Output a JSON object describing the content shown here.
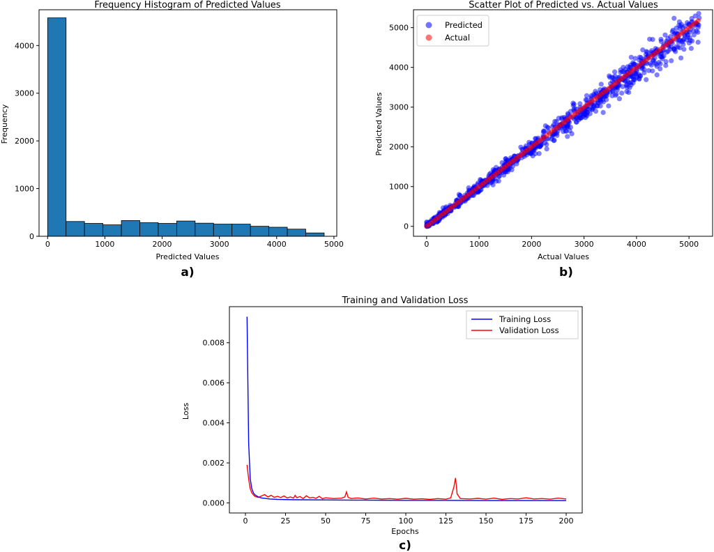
{
  "chart_data": [
    {
      "type": "bar",
      "panel_label": "a)",
      "title": "Frequency Histogram of Predicted Values",
      "xlabel": "Predicted Values",
      "ylabel": "Frequency",
      "xlim": [
        -150,
        5050
      ],
      "ylim": [
        0,
        4750
      ],
      "xticks": [
        0,
        1000,
        2000,
        3000,
        4000,
        5000
      ],
      "yticks": [
        0,
        1000,
        2000,
        3000,
        4000
      ],
      "bin_edges": [
        0,
        322,
        644,
        966,
        1288,
        1610,
        1932,
        2254,
        2576,
        2898,
        3220,
        3542,
        3864,
        4186,
        4508,
        4830
      ],
      "values": [
        4580,
        310,
        270,
        240,
        330,
        285,
        270,
        320,
        275,
        255,
        255,
        210,
        190,
        150,
        70
      ],
      "bar_color": "#1f77b4",
      "grid": false
    },
    {
      "type": "scatter",
      "panel_label": "b)",
      "title": "Scatter Plot of Predicted vs. Actual Values",
      "xlabel": "Actual Values",
      "ylabel": "Predicted Values",
      "xlim": [
        -250,
        5450
      ],
      "ylim": [
        -250,
        5450
      ],
      "xticks": [
        0,
        1000,
        2000,
        3000,
        4000,
        5000
      ],
      "yticks": [
        0,
        1000,
        2000,
        3000,
        4000,
        5000
      ],
      "legend_position": "top-left",
      "grid": false,
      "series": [
        {
          "name": "Predicted",
          "color": "#0000ff",
          "relation": "y ≈ x with spread",
          "x_range": [
            0,
            5200
          ]
        },
        {
          "name": "Actual",
          "color": "#ff0000",
          "relation": "y = x",
          "x_range": [
            0,
            5200
          ]
        }
      ]
    },
    {
      "type": "line",
      "panel_label": "c)",
      "title": "Training and Validation Loss",
      "xlabel": "Epochs",
      "ylabel": "Loss",
      "xlim": [
        -10,
        210
      ],
      "ylim": [
        -0.0005,
        0.0098
      ],
      "xticks": [
        0,
        25,
        50,
        75,
        100,
        125,
        150,
        175,
        200
      ],
      "yticks": [
        "0.000",
        "0.002",
        "0.004",
        "0.006",
        "0.008"
      ],
      "legend_position": "top-right",
      "grid": false,
      "series": [
        {
          "name": "Training Loss",
          "color": "#0000ff",
          "x": [
            1,
            2,
            3,
            4,
            5,
            6,
            8,
            10,
            15,
            20,
            30,
            50,
            75,
            100,
            125,
            150,
            175,
            200
          ],
          "y": [
            0.0093,
            0.003,
            0.0012,
            0.0007,
            0.0005,
            0.0004,
            0.0003,
            0.00025,
            0.0002,
            0.00018,
            0.00016,
            0.00015,
            0.00014,
            0.00013,
            0.00013,
            0.00012,
            0.00012,
            0.00012
          ]
        },
        {
          "name": "Validation Loss",
          "color": "#ff0000",
          "x": [
            1,
            2,
            3,
            4,
            5,
            6,
            8,
            10,
            12,
            14,
            16,
            18,
            20,
            22,
            24,
            26,
            28,
            30,
            31,
            32,
            34,
            36,
            38,
            40,
            42,
            44,
            46,
            48,
            50,
            55,
            60,
            62,
            63,
            64,
            66,
            70,
            75,
            80,
            85,
            90,
            95,
            100,
            105,
            110,
            115,
            120,
            125,
            128,
            130,
            131,
            132,
            134,
            140,
            145,
            150,
            155,
            160,
            165,
            170,
            175,
            180,
            185,
            190,
            195,
            200
          ],
          "y": [
            0.0019,
            0.0012,
            0.0007,
            0.0005,
            0.0004,
            0.00032,
            0.00028,
            0.00035,
            0.00042,
            0.0003,
            0.00038,
            0.00028,
            0.00033,
            0.00027,
            0.00035,
            0.00025,
            0.0003,
            0.00024,
            0.00038,
            0.00026,
            0.00032,
            0.00022,
            0.00036,
            0.00025,
            0.00028,
            0.00023,
            0.00033,
            0.00021,
            0.00026,
            0.00022,
            0.00024,
            0.0003,
            0.00055,
            0.00028,
            0.00022,
            0.00025,
            0.0002,
            0.00024,
            0.0002,
            0.00022,
            0.00019,
            0.00023,
            0.00019,
            0.00021,
            0.00018,
            0.00022,
            0.00019,
            0.00025,
            0.0008,
            0.00125,
            0.00045,
            0.00022,
            0.0002,
            0.00023,
            0.00019,
            0.00024,
            0.00018,
            0.00022,
            0.0002,
            0.00026,
            0.0002,
            0.00022,
            0.00019,
            0.00024,
            0.0002
          ]
        }
      ]
    }
  ]
}
